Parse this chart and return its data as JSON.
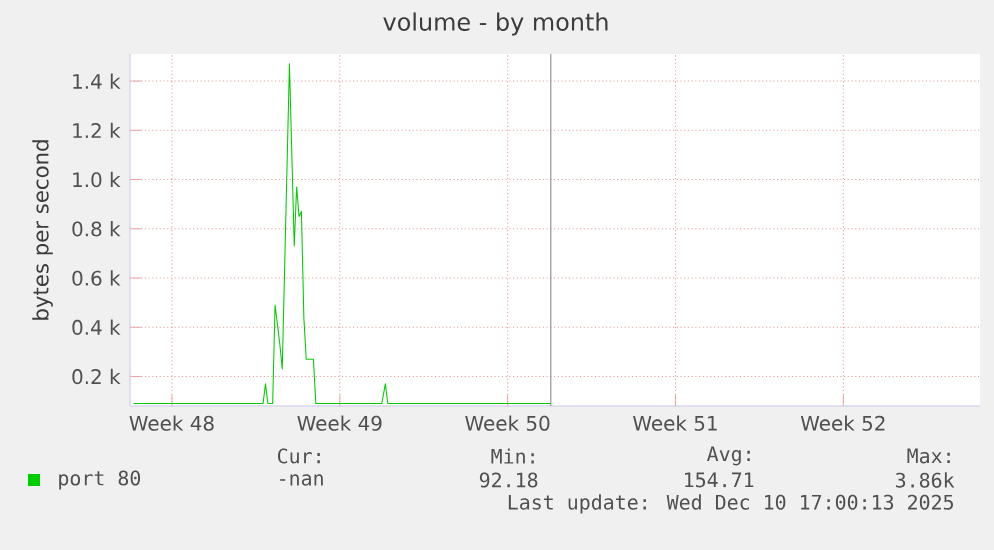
{
  "chart_data": {
    "type": "line",
    "title": "volume - by month",
    "ylabel": "bytes per second",
    "x": [
      "2025-11-22T09:36",
      "2025-11-27T19:12",
      "2025-11-27T21:36",
      "2025-11-28T00:00",
      "2025-11-28T04:48",
      "2025-11-28T07:12",
      "2025-11-28T12:00",
      "2025-11-28T14:24",
      "2025-11-28T21:36",
      "2025-11-29T02:24",
      "2025-11-29T04:48",
      "2025-11-29T07:12",
      "2025-11-29T09:36",
      "2025-11-29T12:00",
      "2025-11-29T14:24",
      "2025-11-29T21:36",
      "2025-11-30T00:00",
      "2025-12-02T18:00",
      "2025-12-02T21:36",
      "2025-12-03T00:00",
      "2025-12-09T19:12"
    ],
    "series": [
      {
        "name": "port 80",
        "color": "#00cc00",
        "values": [
          90,
          90,
          170,
          90,
          90,
          490,
          330,
          230,
          1470,
          730,
          970,
          850,
          870,
          440,
          270,
          270,
          90,
          90,
          170,
          90,
          90
        ]
      }
    ],
    "xlim": [
      "2025-11-22T06:00",
      "2025-12-27T16:48"
    ],
    "xticks": [
      {
        "value": "2025-11-24",
        "label": "Week 48"
      },
      {
        "value": "2025-12-01",
        "label": "Week 49"
      },
      {
        "value": "2025-12-08",
        "label": "Week 50"
      },
      {
        "value": "2025-12-15",
        "label": "Week 51"
      },
      {
        "value": "2025-12-22",
        "label": "Week 52"
      }
    ],
    "ylim": [
      80,
      1510
    ],
    "yticks": [
      {
        "value": 200,
        "label": "0.2 k"
      },
      {
        "value": 400,
        "label": "0.4 k"
      },
      {
        "value": 600,
        "label": "0.6 k"
      },
      {
        "value": 800,
        "label": "0.8 k"
      },
      {
        "value": 1000,
        "label": "1.0 k"
      },
      {
        "value": 1200,
        "label": "1.2 k"
      },
      {
        "value": 1400,
        "label": "1.4 k"
      }
    ],
    "ref_lines": [
      {
        "axis": "x",
        "value": "2025-12-09T19:12",
        "color": "#888888"
      }
    ],
    "grid": true,
    "legend": "bottom",
    "annotations": [
      "Cur:",
      "Min:",
      "Avg:",
      "Max:",
      "-nan",
      "92.18",
      "154.71",
      "3.86k",
      "Last update: Wed Dec 10 17:00:13 2025"
    ]
  }
}
